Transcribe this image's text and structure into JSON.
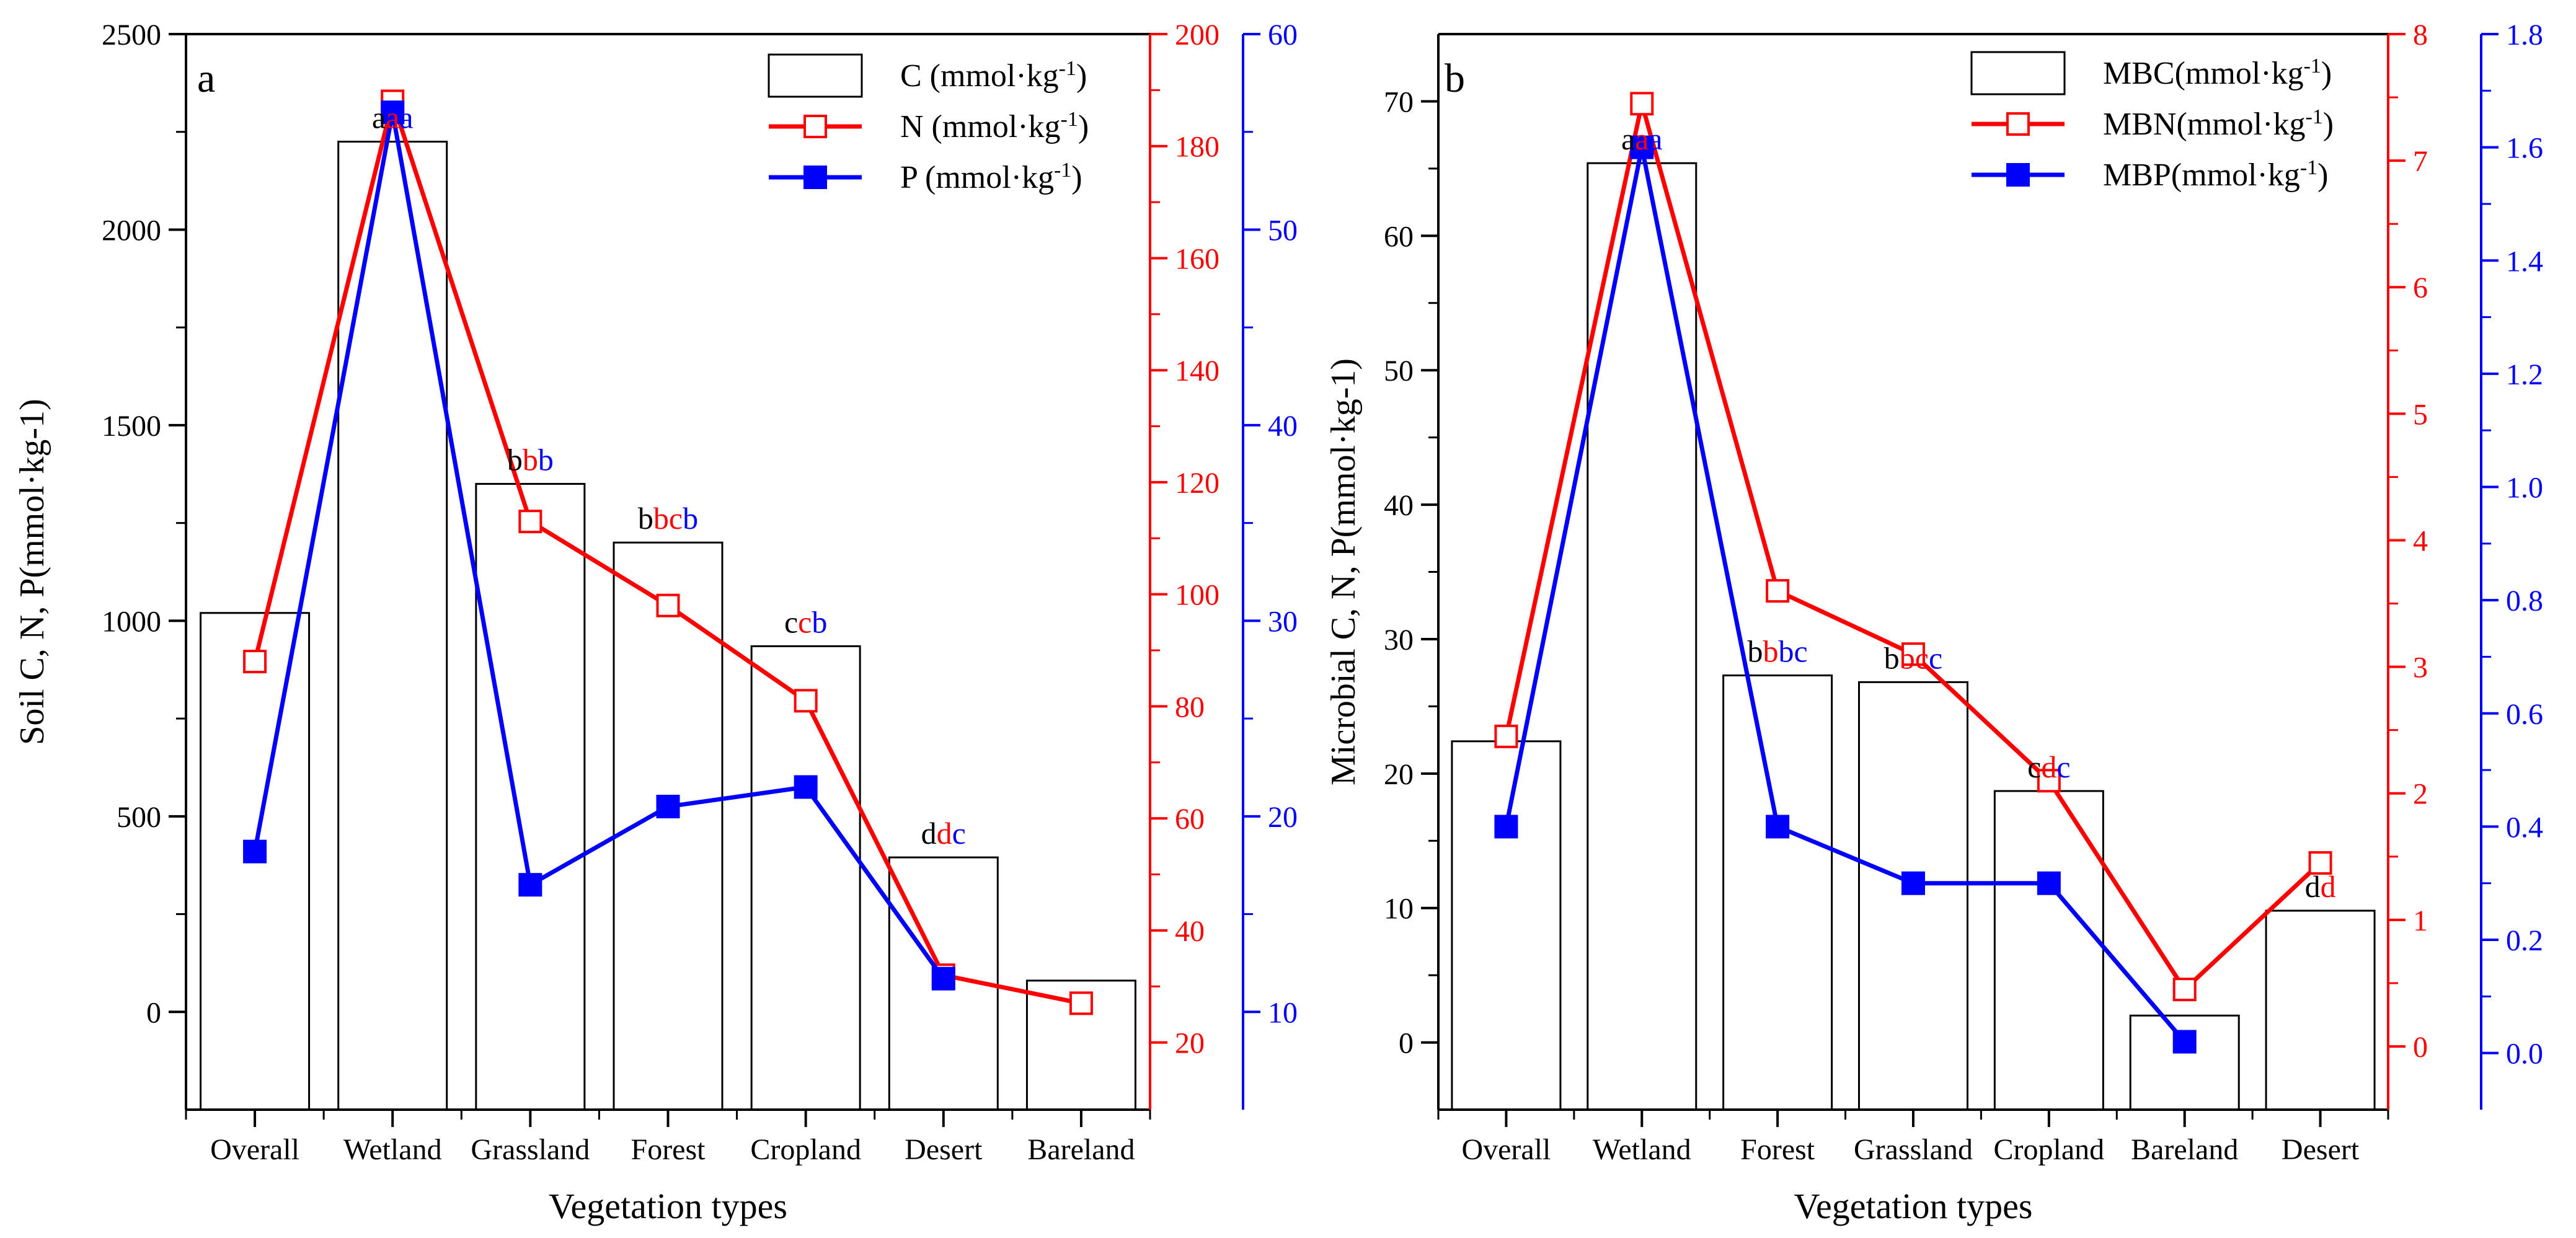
{
  "colors": {
    "black": "#000000",
    "red": "#ff0000",
    "blue": "#0000ff"
  },
  "chart_data": [
    {
      "panel": "a",
      "type": "bar+line",
      "xlabel": "Vegetation types",
      "ylabel": "Soil C, N, P(mmol·kg-1)",
      "categories": [
        "Overall",
        "Wetland",
        "Grassland",
        "Forest",
        "Cropland",
        "Desert",
        "Bareland"
      ],
      "axes": {
        "left": {
          "color": "black",
          "ylim": [
            -250,
            2500
          ],
          "ticks": [
            0,
            500,
            1000,
            1500,
            2000,
            2500
          ]
        },
        "right1": {
          "color": "red",
          "ylim": [
            8,
            200
          ],
          "ticks": [
            20,
            40,
            60,
            80,
            100,
            120,
            140,
            160,
            180,
            200
          ]
        },
        "right2": {
          "color": "blue",
          "ylim": [
            5,
            60
          ],
          "ticks": [
            10,
            20,
            30,
            40,
            50,
            60
          ]
        }
      },
      "series": [
        {
          "name": "C (mmol·kg-1)",
          "legend_base": "C (mmol·kg",
          "legend_sup": "-1",
          "legend_tail": ")",
          "kind": "bar",
          "axis": "left",
          "color": "black",
          "values": [
            1020,
            2225,
            1350,
            1200,
            935,
            395,
            80
          ]
        },
        {
          "name": "N (mmol·kg-1)",
          "legend_base": "N (mmol·kg",
          "legend_sup": "-1",
          "legend_tail": ")",
          "kind": "line-open-square",
          "axis": "right1",
          "color": "red",
          "values": [
            88,
            188,
            113,
            98,
            81,
            32,
            27
          ]
        },
        {
          "name": "P (mmol·kg-1)",
          "legend_base": "P (mmol·kg",
          "legend_sup": "-1",
          "legend_tail": ")",
          "kind": "line-filled-square",
          "axis": "right2",
          "color": "blue",
          "values": [
            18.2,
            56.0,
            16.5,
            20.5,
            21.5,
            11.7,
            null
          ]
        }
      ],
      "letters": [
        null,
        [
          {
            "t": "a",
            "c": "black"
          },
          {
            "t": "a",
            "c": "red"
          },
          {
            "t": "a",
            "c": "blue"
          }
        ],
        [
          {
            "t": "b",
            "c": "black"
          },
          {
            "t": "b",
            "c": "red"
          },
          {
            "t": "b",
            "c": "blue"
          }
        ],
        [
          {
            "t": "b",
            "c": "black"
          },
          {
            "t": "bc",
            "c": "red"
          },
          {
            "t": "b",
            "c": "blue"
          }
        ],
        [
          {
            "t": "c",
            "c": "black"
          },
          {
            "t": "c",
            "c": "red"
          },
          {
            "t": "b",
            "c": "blue"
          }
        ],
        [
          {
            "t": "d",
            "c": "black"
          },
          {
            "t": "d",
            "c": "red"
          },
          {
            "t": "c",
            "c": "blue"
          }
        ],
        null
      ]
    },
    {
      "panel": "b",
      "type": "bar+line",
      "xlabel": "Vegetation types",
      "ylabel": "Microbial C, N, P(mmol·kg-1)",
      "categories": [
        "Overall",
        "Wetland",
        "Forest",
        "Grassland",
        "Cropland",
        "Bareland",
        "Desert"
      ],
      "axes": {
        "left": {
          "color": "black",
          "ylim": [
            -5,
            75
          ],
          "ticks": [
            0,
            10,
            20,
            30,
            40,
            50,
            60,
            70
          ]
        },
        "right1": {
          "color": "red",
          "ylim": [
            -0.5,
            8
          ],
          "ticks": [
            0,
            1,
            2,
            3,
            4,
            5,
            6,
            7,
            8
          ]
        },
        "right2": {
          "color": "blue",
          "ylim": [
            -0.1,
            1.8
          ],
          "ticks": [
            0.0,
            0.2,
            0.4,
            0.6,
            0.8,
            1.0,
            1.2,
            1.4,
            1.6,
            1.8
          ],
          "tick_decimals": 1
        }
      },
      "series": [
        {
          "name": "MBC(mmol·kg-1)",
          "legend_base": "MBC(mmol·kg",
          "legend_sup": "-1",
          "legend_tail": ")",
          "kind": "bar",
          "axis": "left",
          "color": "black",
          "values": [
            22.4,
            65.4,
            27.3,
            26.8,
            18.7,
            2.0,
            9.8
          ]
        },
        {
          "name": "MBN(mmol·kg-1)",
          "legend_base": "MBN(mmol·kg",
          "legend_sup": "-1",
          "legend_tail": ")",
          "kind": "line-open-square",
          "axis": "right1",
          "color": "red",
          "values": [
            2.45,
            7.45,
            3.6,
            3.1,
            2.1,
            0.45,
            1.45
          ]
        },
        {
          "name": "MBP(mmol·kg-1)",
          "legend_base": "MBP(mmol·kg",
          "legend_sup": "-1",
          "legend_tail": ")",
          "kind": "line-filled-square",
          "axis": "right2",
          "color": "blue",
          "values": [
            0.4,
            1.6,
            0.4,
            0.3,
            0.3,
            0.02,
            null
          ]
        }
      ],
      "letters": [
        null,
        [
          {
            "t": "a",
            "c": "black"
          },
          {
            "t": "a",
            "c": "red"
          },
          {
            "t": "a",
            "c": "blue"
          }
        ],
        [
          {
            "t": "b",
            "c": "black"
          },
          {
            "t": "b",
            "c": "red"
          },
          {
            "t": "bc",
            "c": "blue"
          }
        ],
        [
          {
            "t": "b",
            "c": "black"
          },
          {
            "t": "bc",
            "c": "red"
          },
          {
            "t": "c",
            "c": "blue"
          }
        ],
        [
          {
            "t": "c",
            "c": "black"
          },
          {
            "t": "d",
            "c": "red"
          },
          {
            "t": "c",
            "c": "blue"
          }
        ],
        null,
        [
          {
            "t": "d",
            "c": "black"
          },
          {
            "t": "d",
            "c": "red"
          }
        ]
      ]
    }
  ]
}
